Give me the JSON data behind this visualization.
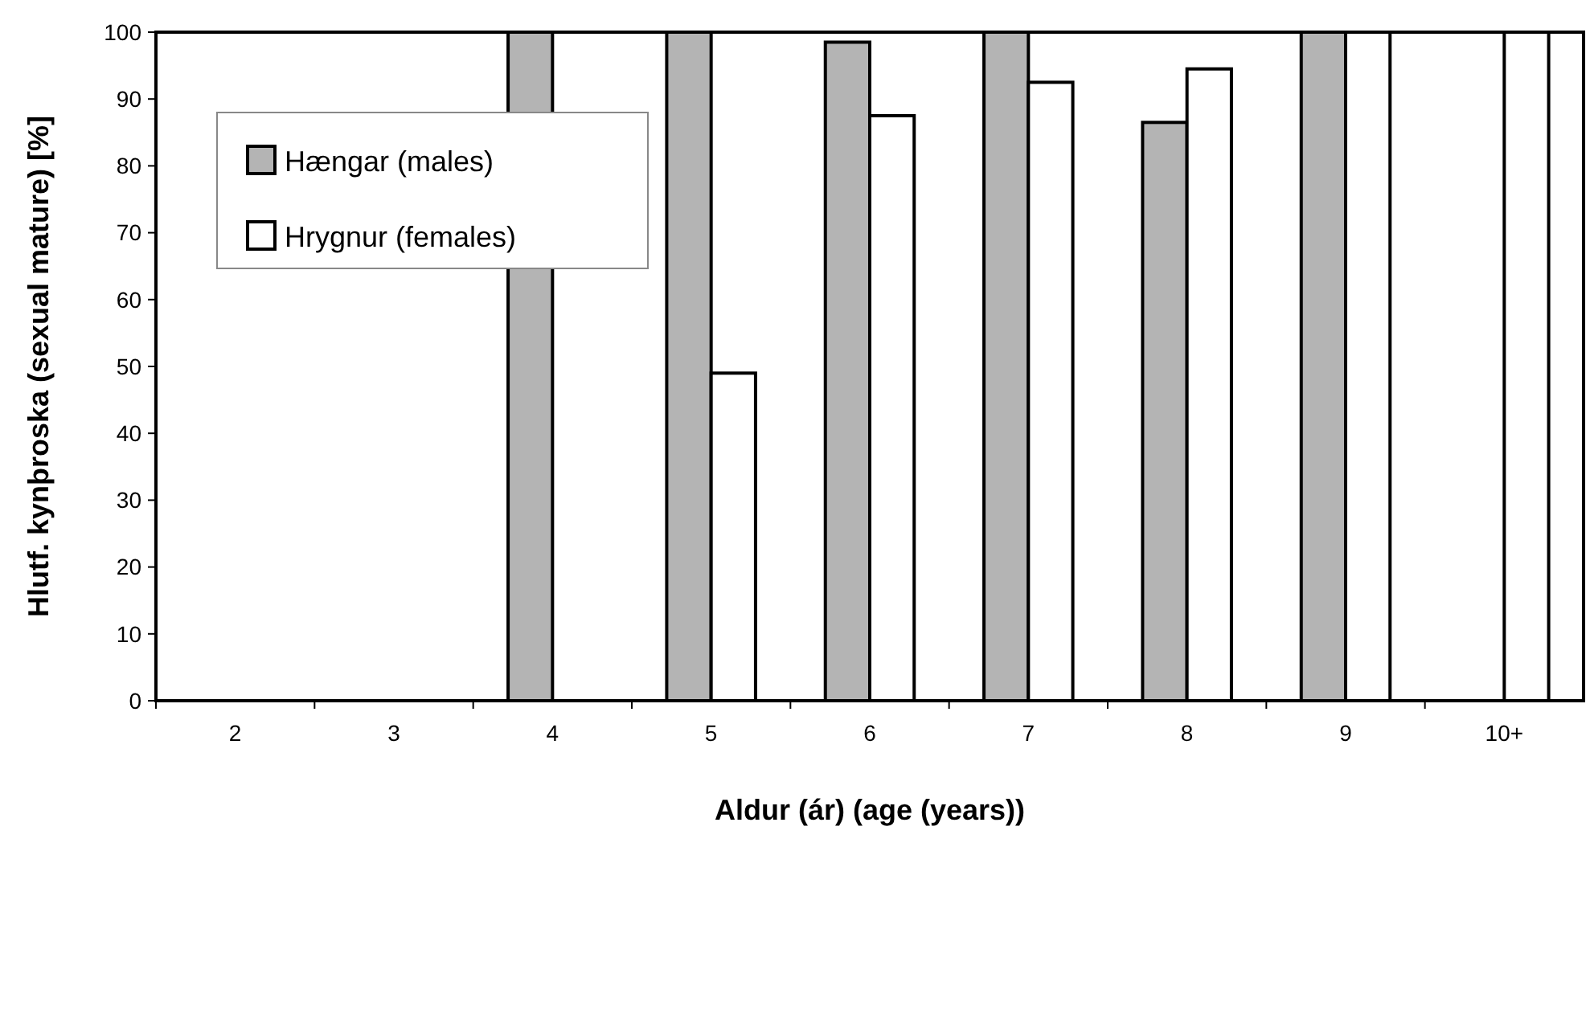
{
  "chart_data": {
    "type": "bar",
    "xlabel": "Aldur (ár) (age (years))",
    "ylabel": "Hlutf. kynþroska (sexual mature) [%]",
    "categories": [
      "2",
      "3",
      "4",
      "5",
      "6",
      "7",
      "8",
      "9",
      "10+"
    ],
    "series": [
      {
        "name": "Hængar (males)",
        "color": "#b4b4b4",
        "values": [
          0,
          0,
          100,
          100,
          98.5,
          100,
          86.5,
          100,
          0
        ]
      },
      {
        "name": "Hrygnur (females)",
        "color": "#ffffff",
        "values": [
          0,
          0,
          0,
          49,
          87.5,
          92.5,
          94.5,
          100,
          100
        ]
      }
    ],
    "ylim": [
      0,
      100
    ],
    "yticks": [
      0,
      10,
      20,
      30,
      40,
      50,
      60,
      70,
      80,
      90,
      100
    ],
    "grid": false,
    "legend": "top left"
  }
}
